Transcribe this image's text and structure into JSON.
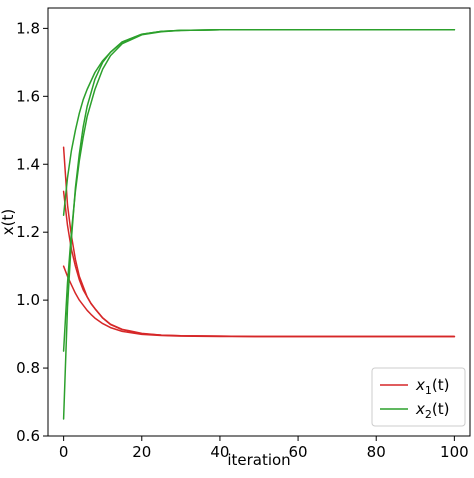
{
  "chart_data": {
    "type": "line",
    "title": "",
    "xlabel": "iteration",
    "ylabel": "x(t)",
    "xlim": [
      -4,
      104
    ],
    "ylim": [
      0.6,
      1.86
    ],
    "xticks": [
      0,
      20,
      40,
      60,
      80,
      100
    ],
    "yticks": [
      0.6,
      0.8,
      1.0,
      1.2,
      1.4,
      1.6,
      1.8
    ],
    "xtick_labels": [
      "0",
      "20",
      "40",
      "60",
      "80",
      "100"
    ],
    "ytick_labels": [
      "0.6",
      "0.8",
      "1.0",
      "1.2",
      "1.4",
      "1.6",
      "1.8"
    ],
    "grid": false,
    "legend_position": "bottom-right",
    "series": [
      {
        "name": "x1(t)",
        "legend_main": "x",
        "legend_sub": "1",
        "legend_tail": "(t)",
        "color": "#d62728",
        "runs": [
          {
            "x": [
              0,
              1,
              2,
              3,
              4,
              5,
              6,
              7,
              8,
              10,
              12,
              15,
              20,
              25,
              30,
              40,
              50,
              60,
              80,
              100
            ],
            "y": [
              1.45,
              1.28,
              1.19,
              1.12,
              1.07,
              1.04,
              1.01,
              0.99,
              0.975,
              0.947,
              0.928,
              0.913,
              0.901,
              0.897,
              0.895,
              0.894,
              0.893,
              0.893,
              0.893,
              0.893
            ]
          },
          {
            "x": [
              0,
              1,
              2,
              3,
              4,
              5,
              6,
              7,
              8,
              10,
              12,
              15,
              20,
              25,
              30,
              40,
              50,
              60,
              80,
              100
            ],
            "y": [
              1.32,
              1.22,
              1.15,
              1.1,
              1.06,
              1.03,
              1.01,
              0.99,
              0.975,
              0.948,
              0.929,
              0.914,
              0.902,
              0.897,
              0.895,
              0.894,
              0.893,
              0.893,
              0.893,
              0.893
            ]
          },
          {
            "x": [
              0,
              1,
              2,
              3,
              4,
              5,
              6,
              7,
              8,
              10,
              12,
              15,
              20,
              25,
              30,
              40,
              50,
              60,
              80,
              100
            ],
            "y": [
              1.1,
              1.07,
              1.045,
              1.02,
              1.0,
              0.985,
              0.97,
              0.958,
              0.947,
              0.931,
              0.919,
              0.908,
              0.899,
              0.896,
              0.894,
              0.893,
              0.893,
              0.893,
              0.893,
              0.893
            ]
          }
        ]
      },
      {
        "name": "x2(t)",
        "legend_main": "x",
        "legend_sub": "2",
        "legend_tail": "(t)",
        "color": "#2ca02c",
        "runs": [
          {
            "x": [
              0,
              1,
              2,
              3,
              4,
              5,
              6,
              8,
              10,
              12,
              15,
              20,
              25,
              30,
              35,
              40,
              50,
              60,
              80,
              100
            ],
            "y": [
              0.65,
              0.98,
              1.18,
              1.33,
              1.43,
              1.51,
              1.57,
              1.65,
              1.7,
              1.73,
              1.76,
              1.783,
              1.791,
              1.794,
              1.795,
              1.796,
              1.796,
              1.796,
              1.796,
              1.796
            ]
          },
          {
            "x": [
              0,
              1,
              2,
              3,
              4,
              5,
              6,
              8,
              10,
              12,
              15,
              20,
              25,
              30,
              35,
              40,
              50,
              60,
              80,
              100
            ],
            "y": [
              0.85,
              1.05,
              1.2,
              1.32,
              1.41,
              1.48,
              1.54,
              1.62,
              1.68,
              1.72,
              1.755,
              1.781,
              1.79,
              1.794,
              1.795,
              1.796,
              1.796,
              1.796,
              1.796,
              1.796
            ]
          },
          {
            "x": [
              0,
              1,
              2,
              3,
              4,
              5,
              6,
              8,
              10,
              12,
              15,
              20,
              25,
              30,
              35,
              40,
              50,
              60,
              80,
              100
            ],
            "y": [
              1.25,
              1.36,
              1.44,
              1.5,
              1.55,
              1.59,
              1.62,
              1.67,
              1.705,
              1.73,
              1.76,
              1.783,
              1.791,
              1.794,
              1.795,
              1.796,
              1.796,
              1.796,
              1.796,
              1.796
            ]
          }
        ]
      }
    ]
  }
}
